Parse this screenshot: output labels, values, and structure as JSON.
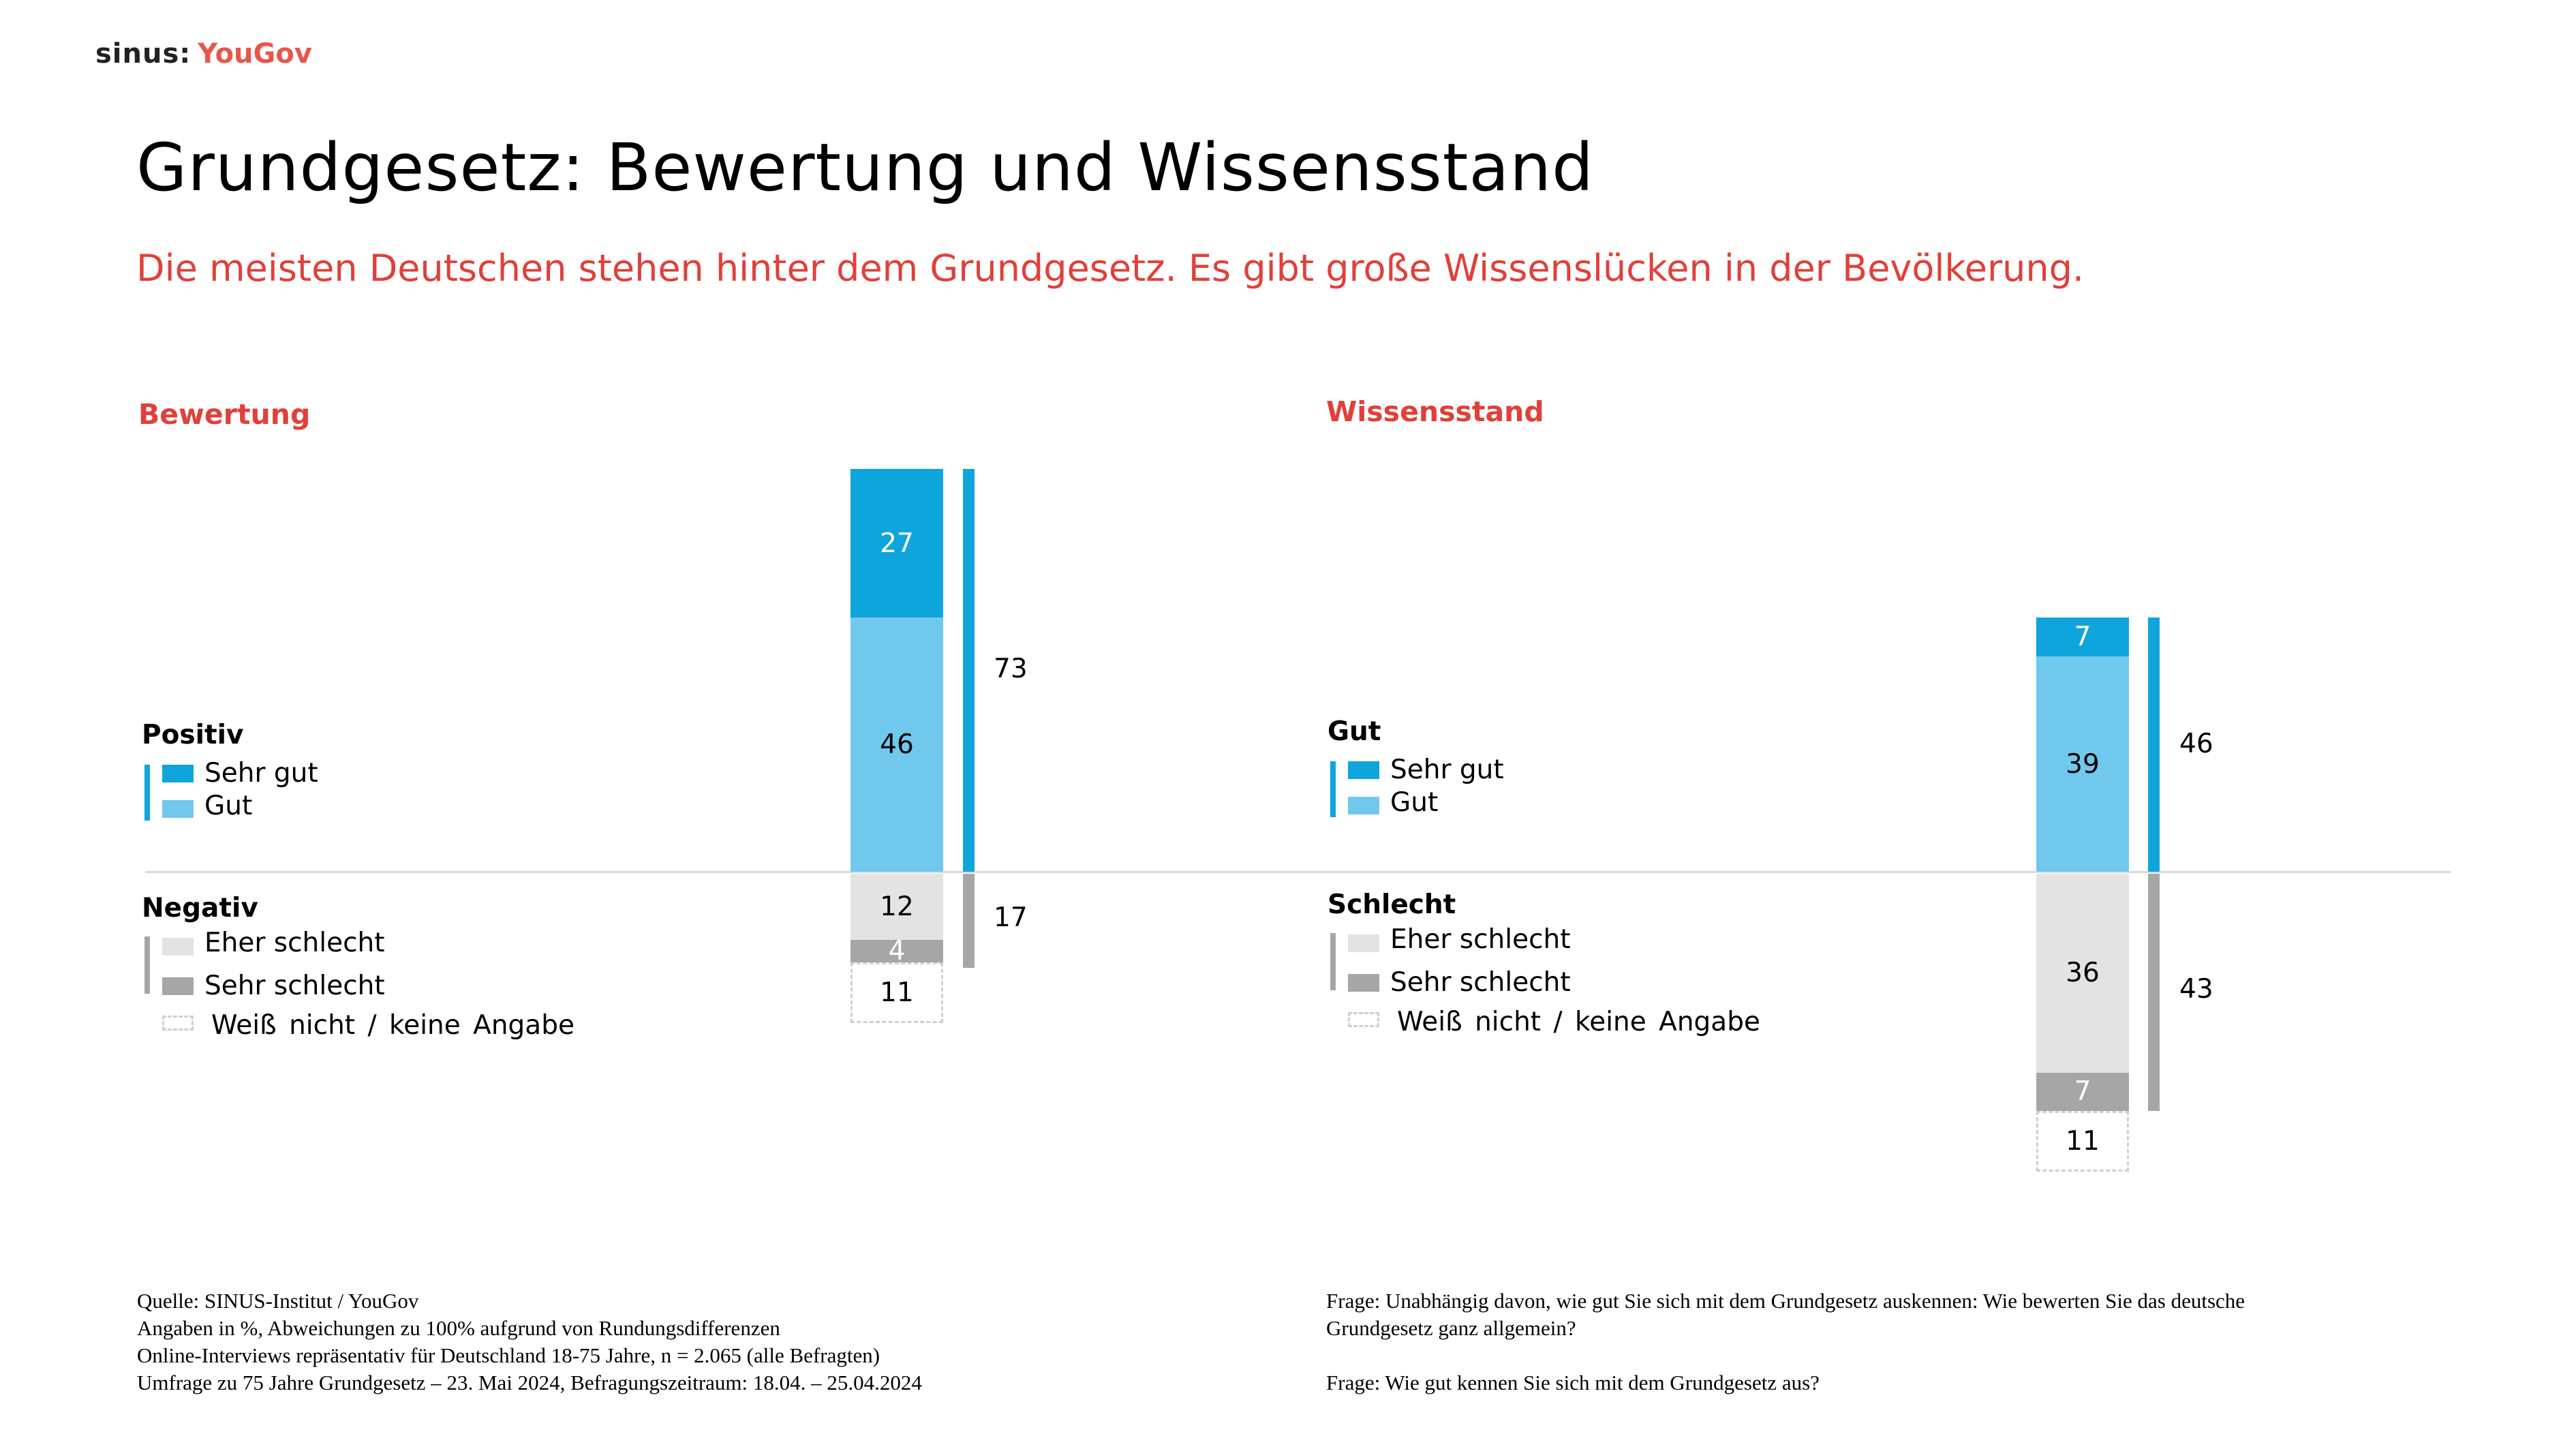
{
  "logo": {
    "part1": "sinus:",
    "part2": "YouGov"
  },
  "title": "Grundgesetz: Bewertung und Wissensstand",
  "subtitle": "Die meisten Deutschen stehen hinter dem Grundgesetz. Es gibt große Wissenslücken in der Bevölkerung.",
  "colors": {
    "sehr_gut": "#0ea5dd",
    "gut": "#70c8ec",
    "eher_schlecht": "#e3e3e3",
    "sehr_schlecht": "#a6a6a6",
    "accent": "#e0403a"
  },
  "chart_data": [
    {
      "type": "bar",
      "title": "Bewertung",
      "stacked": true,
      "positive_label": "Positiv",
      "negative_label": "Negativ",
      "legend": [
        "Sehr gut",
        "Gut",
        "Eher schlecht",
        "Sehr schlecht",
        "Weiß nicht / keine Angabe"
      ],
      "values": {
        "sehr_gut": 27,
        "gut": 46,
        "eher_schlecht": 12,
        "sehr_schlecht": 4,
        "weiss_nicht": 11
      },
      "totals": {
        "positive": 73,
        "negative": 17
      }
    },
    {
      "type": "bar",
      "title": "Wissensstand",
      "stacked": true,
      "positive_label": "Gut",
      "negative_label": "Schlecht",
      "legend": [
        "Sehr gut",
        "Gut",
        "Eher schlecht",
        "Sehr schlecht",
        "Weiß nicht / keine Angabe"
      ],
      "values": {
        "sehr_gut": 7,
        "gut": 39,
        "eher_schlecht": 36,
        "sehr_schlecht": 7,
        "weiss_nicht": 11
      },
      "totals": {
        "positive": 46,
        "negative": 43
      }
    }
  ],
  "footer": {
    "left": [
      "Quelle: SINUS-Institut / YouGov",
      "Angaben in %, Abweichungen zu 100% aufgrund von Rundungsdifferenzen",
      "Online-Interviews repräsentativ für Deutschland 18-75 Jahre, n = 2.065 (alle Befragten)",
      "Umfrage zu 75 Jahre Grundgesetz – 23. Mai 2024, Befragungszeitraum: 18.04. – 25.04.2024"
    ],
    "right": [
      "Frage: Unabhängig davon, wie gut Sie sich mit dem Grundgesetz auskennen: Wie bewerten Sie das deutsche",
      "Grundgesetz ganz allgemein?",
      "Frage: Wie gut kennen Sie sich mit dem Grundgesetz aus?"
    ]
  }
}
